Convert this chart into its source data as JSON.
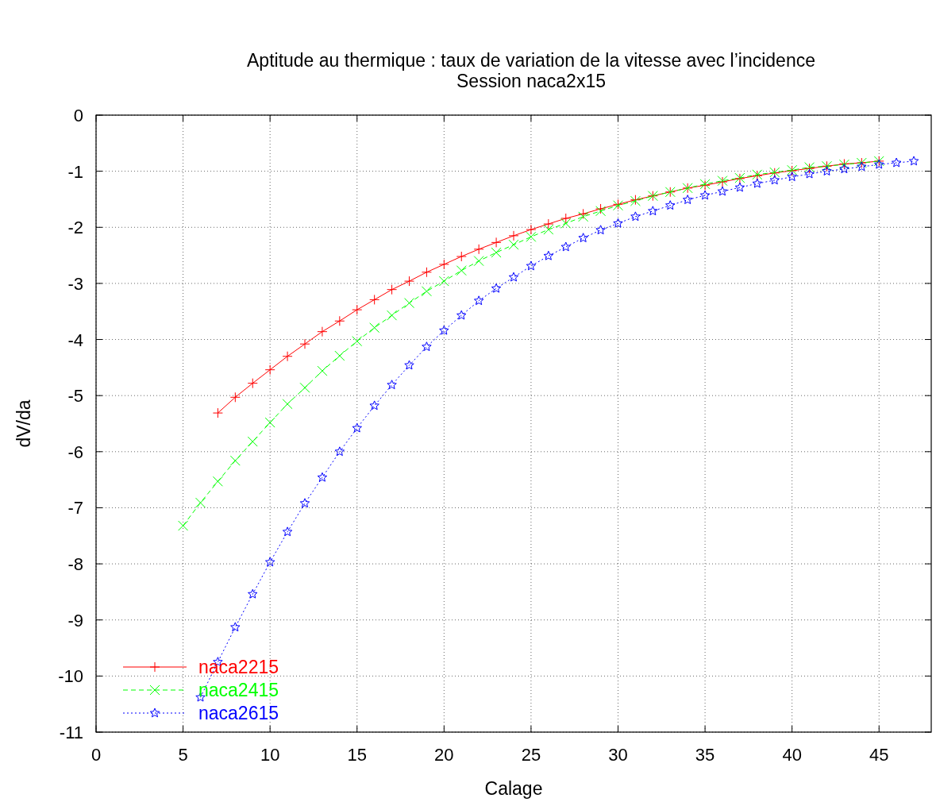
{
  "chart_data": {
    "type": "line",
    "title": "Aptitude au thermique : taux de variation de la vitesse avec l’incidence",
    "subtitle": "Session naca2x15",
    "xlabel": "Calage",
    "ylabel": "dV/da",
    "xlim": [
      0,
      48
    ],
    "xticks": [
      0,
      5,
      10,
      15,
      20,
      25,
      30,
      35,
      40,
      45
    ],
    "ylim": [
      -11,
      0
    ],
    "yticks": [
      0,
      -1,
      -2,
      -3,
      -4,
      -5,
      -6,
      -7,
      -8,
      -9,
      -10,
      -11
    ],
    "grid": true,
    "legend": "bottom left",
    "series": [
      {
        "name": "naca2215",
        "color": "#ff0000",
        "marker": "cross",
        "line_style": "solid",
        "x": [
          7,
          8,
          9,
          10,
          11,
          12,
          13,
          14,
          15,
          16,
          17,
          18,
          19,
          20,
          21,
          22,
          23,
          24,
          25,
          26,
          27,
          28,
          29,
          30,
          31,
          32,
          33,
          34,
          35,
          36,
          37,
          38,
          39,
          40,
          41,
          42,
          43,
          44,
          45
        ],
        "values": [
          -5.31,
          -5.03,
          -4.78,
          -4.54,
          -4.3,
          -4.08,
          -3.86,
          -3.67,
          -3.47,
          -3.29,
          -3.11,
          -2.96,
          -2.8,
          -2.66,
          -2.52,
          -2.39,
          -2.27,
          -2.15,
          -2.04,
          -1.94,
          -1.84,
          -1.76,
          -1.67,
          -1.59,
          -1.51,
          -1.44,
          -1.37,
          -1.3,
          -1.25,
          -1.19,
          -1.13,
          -1.08,
          -1.03,
          -0.99,
          -0.95,
          -0.91,
          -0.87,
          -0.85,
          -0.82
        ]
      },
      {
        "name": "naca2415",
        "color": "#00ff00",
        "marker": "x",
        "line_style": "dashed",
        "x": [
          5,
          6,
          7,
          8,
          9,
          10,
          11,
          12,
          13,
          14,
          15,
          16,
          17,
          18,
          19,
          20,
          21,
          22,
          23,
          24,
          25,
          26,
          27,
          28,
          29,
          30,
          31,
          32,
          33,
          34,
          35,
          36,
          37,
          38,
          39,
          40,
          41,
          42,
          43,
          44,
          45
        ],
        "values": [
          -7.32,
          -6.91,
          -6.53,
          -6.16,
          -5.82,
          -5.48,
          -5.15,
          -4.86,
          -4.56,
          -4.29,
          -4.03,
          -3.79,
          -3.57,
          -3.35,
          -3.14,
          -2.96,
          -2.77,
          -2.6,
          -2.45,
          -2.31,
          -2.17,
          -2.04,
          -1.93,
          -1.81,
          -1.71,
          -1.61,
          -1.53,
          -1.44,
          -1.37,
          -1.3,
          -1.23,
          -1.17,
          -1.12,
          -1.06,
          -1.02,
          -0.98,
          -0.93,
          -0.91,
          -0.88,
          -0.85,
          -0.82
        ]
      },
      {
        "name": "naca2615",
        "color": "#0000ff",
        "marker": "star",
        "line_style": "dotted",
        "x": [
          6,
          7,
          8,
          9,
          10,
          11,
          12,
          13,
          14,
          15,
          16,
          17,
          18,
          19,
          20,
          21,
          22,
          23,
          24,
          25,
          26,
          27,
          28,
          29,
          30,
          31,
          32,
          33,
          34,
          35,
          36,
          37,
          38,
          39,
          40,
          41,
          42,
          43,
          44,
          45,
          46,
          47
        ],
        "values": [
          -10.38,
          -9.75,
          -9.13,
          -8.54,
          -7.97,
          -7.43,
          -6.92,
          -6.46,
          -6.0,
          -5.58,
          -5.18,
          -4.81,
          -4.46,
          -4.13,
          -3.84,
          -3.57,
          -3.31,
          -3.09,
          -2.89,
          -2.69,
          -2.51,
          -2.35,
          -2.19,
          -2.05,
          -1.93,
          -1.81,
          -1.71,
          -1.61,
          -1.51,
          -1.43,
          -1.36,
          -1.29,
          -1.22,
          -1.16,
          -1.1,
          -1.05,
          -1.0,
          -0.96,
          -0.92,
          -0.88,
          -0.85,
          -0.82
        ]
      }
    ]
  }
}
